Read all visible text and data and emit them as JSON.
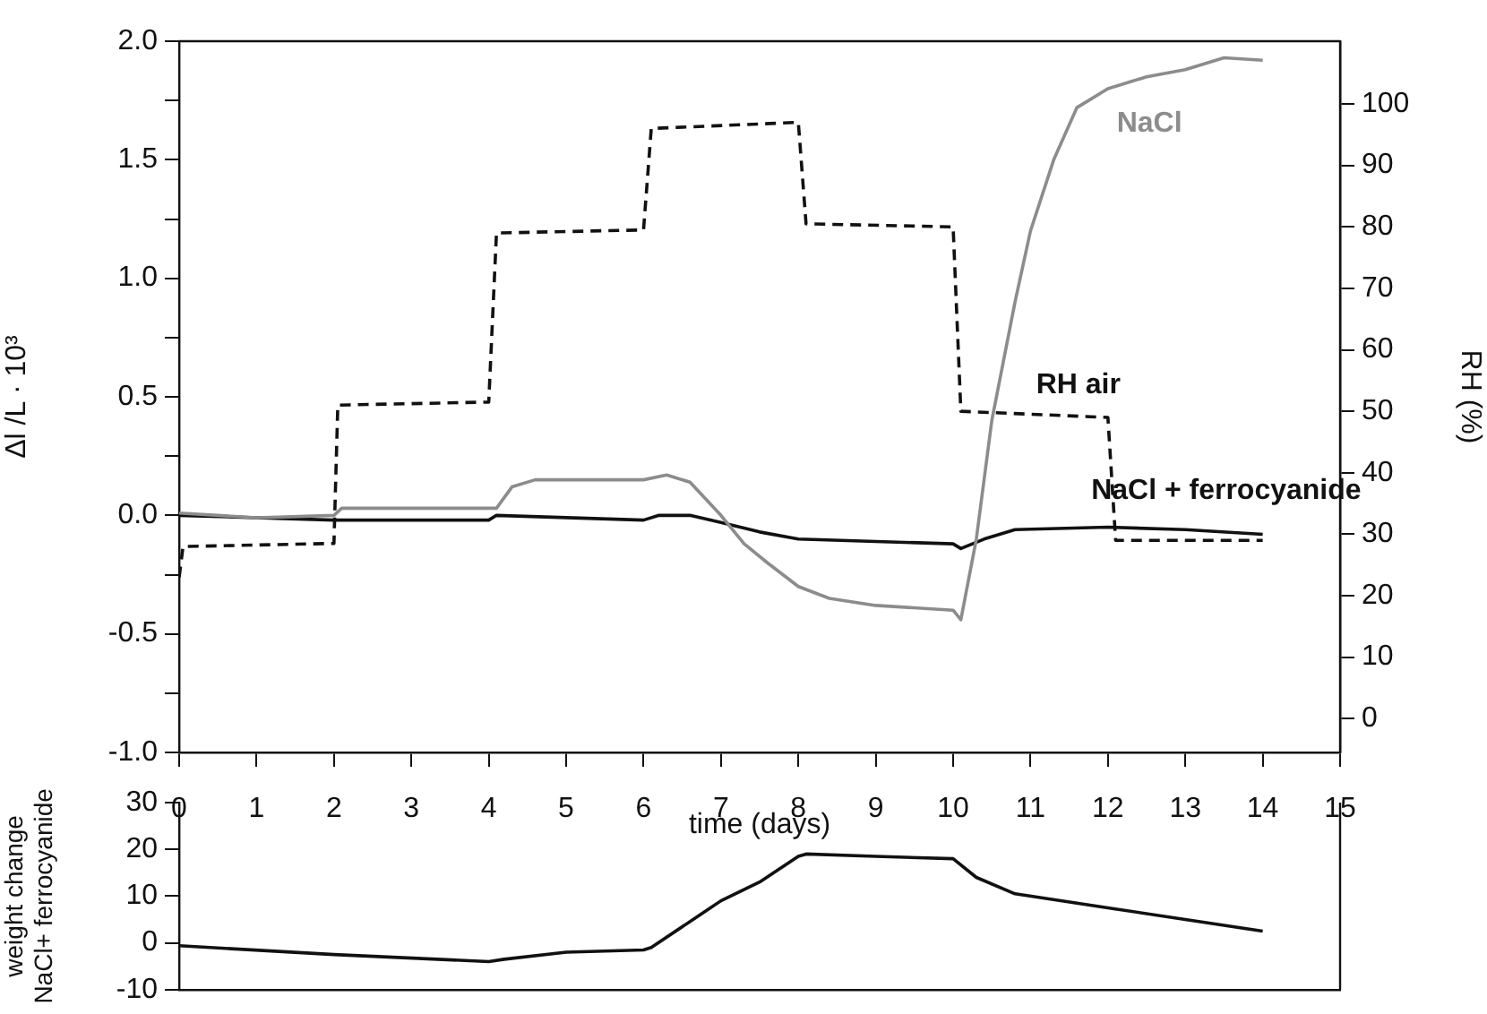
{
  "chart_data": [
    {
      "type": "line",
      "xlabel": "time (days)",
      "ylabel": "Δl /L · 10³",
      "y2label": "RH (%)",
      "xlim": [
        0,
        15
      ],
      "xticks": [
        0,
        1,
        2,
        3,
        4,
        5,
        6,
        7,
        8,
        9,
        10,
        11,
        12,
        13,
        14,
        15
      ],
      "ylim": [
        -1,
        2
      ],
      "yticks": [
        {
          "value": -1,
          "label": "-1.0"
        },
        {
          "value": -0.75,
          "label": null
        },
        {
          "value": -0.5,
          "label": "-0.5"
        },
        {
          "value": -0.25,
          "label": null
        },
        {
          "value": 0,
          "label": "0.0"
        },
        {
          "value": 0.25,
          "label": null
        },
        {
          "value": 0.5,
          "label": "0.5"
        },
        {
          "value": 0.75,
          "label": null
        },
        {
          "value": 1,
          "label": "1.0"
        },
        {
          "value": 1.25,
          "label": null
        },
        {
          "value": 1.5,
          "label": "1.5"
        },
        {
          "value": 1.75,
          "label": null
        },
        {
          "value": 2,
          "label": "2.0"
        }
      ],
      "y2lim": [
        -5.5,
        110.2
      ],
      "y2ticks": [
        0,
        10,
        20,
        30,
        40,
        50,
        60,
        70,
        80,
        90,
        100
      ],
      "grid": false,
      "legend": false,
      "marker": "none",
      "series": [
        {
          "name": "NaCl",
          "color": "#8c8c8c",
          "x": [
            0,
            1,
            2,
            2.1,
            4.1,
            4.3,
            4.6,
            6,
            6.3,
            6.6,
            7,
            7.3,
            7.6,
            8,
            8.4,
            9,
            10,
            10.1,
            10.3,
            10.5,
            10.8,
            11,
            11.3,
            11.6,
            12,
            12.5,
            13,
            13.5,
            14
          ],
          "values": [
            0.01,
            -0.01,
            0,
            0.03,
            0.03,
            0.12,
            0.15,
            0.15,
            0.17,
            0.14,
            0,
            -0.12,
            -0.2,
            -0.3,
            -0.35,
            -0.38,
            -0.4,
            -0.44,
            -0.1,
            0.4,
            0.9,
            1.2,
            1.5,
            1.72,
            1.8,
            1.85,
            1.88,
            1.93,
            1.92
          ]
        },
        {
          "name": "NaCl + ferrocyanide",
          "color": "#111111",
          "x": [
            0,
            2,
            4,
            4.1,
            6,
            6.2,
            6.6,
            7,
            7.5,
            8,
            9,
            10,
            10.1,
            10.4,
            10.8,
            12,
            13,
            14
          ],
          "values": [
            0,
            -0.02,
            -0.02,
            0,
            -0.02,
            0,
            0,
            -0.03,
            -0.07,
            -0.1,
            -0.11,
            -0.12,
            -0.14,
            -0.1,
            -0.06,
            -0.05,
            -0.06,
            -0.08
          ]
        },
        {
          "name": "RH air",
          "color": "#111111",
          "axis": "y2",
          "line_style": "dashed",
          "x": [
            0,
            0.05,
            2,
            2.05,
            4,
            4.1,
            6,
            6.1,
            8,
            8.1,
            10,
            10.1,
            12,
            12.1,
            14
          ],
          "values": [
            23,
            28,
            28.5,
            51,
            51.5,
            79,
            79.5,
            96,
            97,
            80.5,
            80,
            50,
            49,
            29,
            29
          ]
        }
      ]
    },
    {
      "type": "line",
      "ylabel": "weight change\nNaCl+ ferrocyanide",
      "xlim": [
        0,
        15
      ],
      "ylim": [
        -10,
        30
      ],
      "yticks": [
        -10,
        0,
        10,
        20,
        30
      ],
      "tick_labels": "y",
      "grid": false,
      "legend": false,
      "marker": "none",
      "series": [
        {
          "color": "#111111",
          "x": [
            0,
            2,
            4,
            4.2,
            5,
            6,
            6.1,
            7,
            7.5,
            8,
            8.1,
            9,
            10,
            10.3,
            10.8,
            12,
            13,
            14
          ],
          "values": [
            -0.6,
            -2.5,
            -4,
            -3.5,
            -2,
            -1.5,
            -1,
            9,
            13,
            18.5,
            19,
            18.5,
            18,
            14,
            10.5,
            7.5,
            5,
            2.5
          ]
        }
      ]
    }
  ]
}
